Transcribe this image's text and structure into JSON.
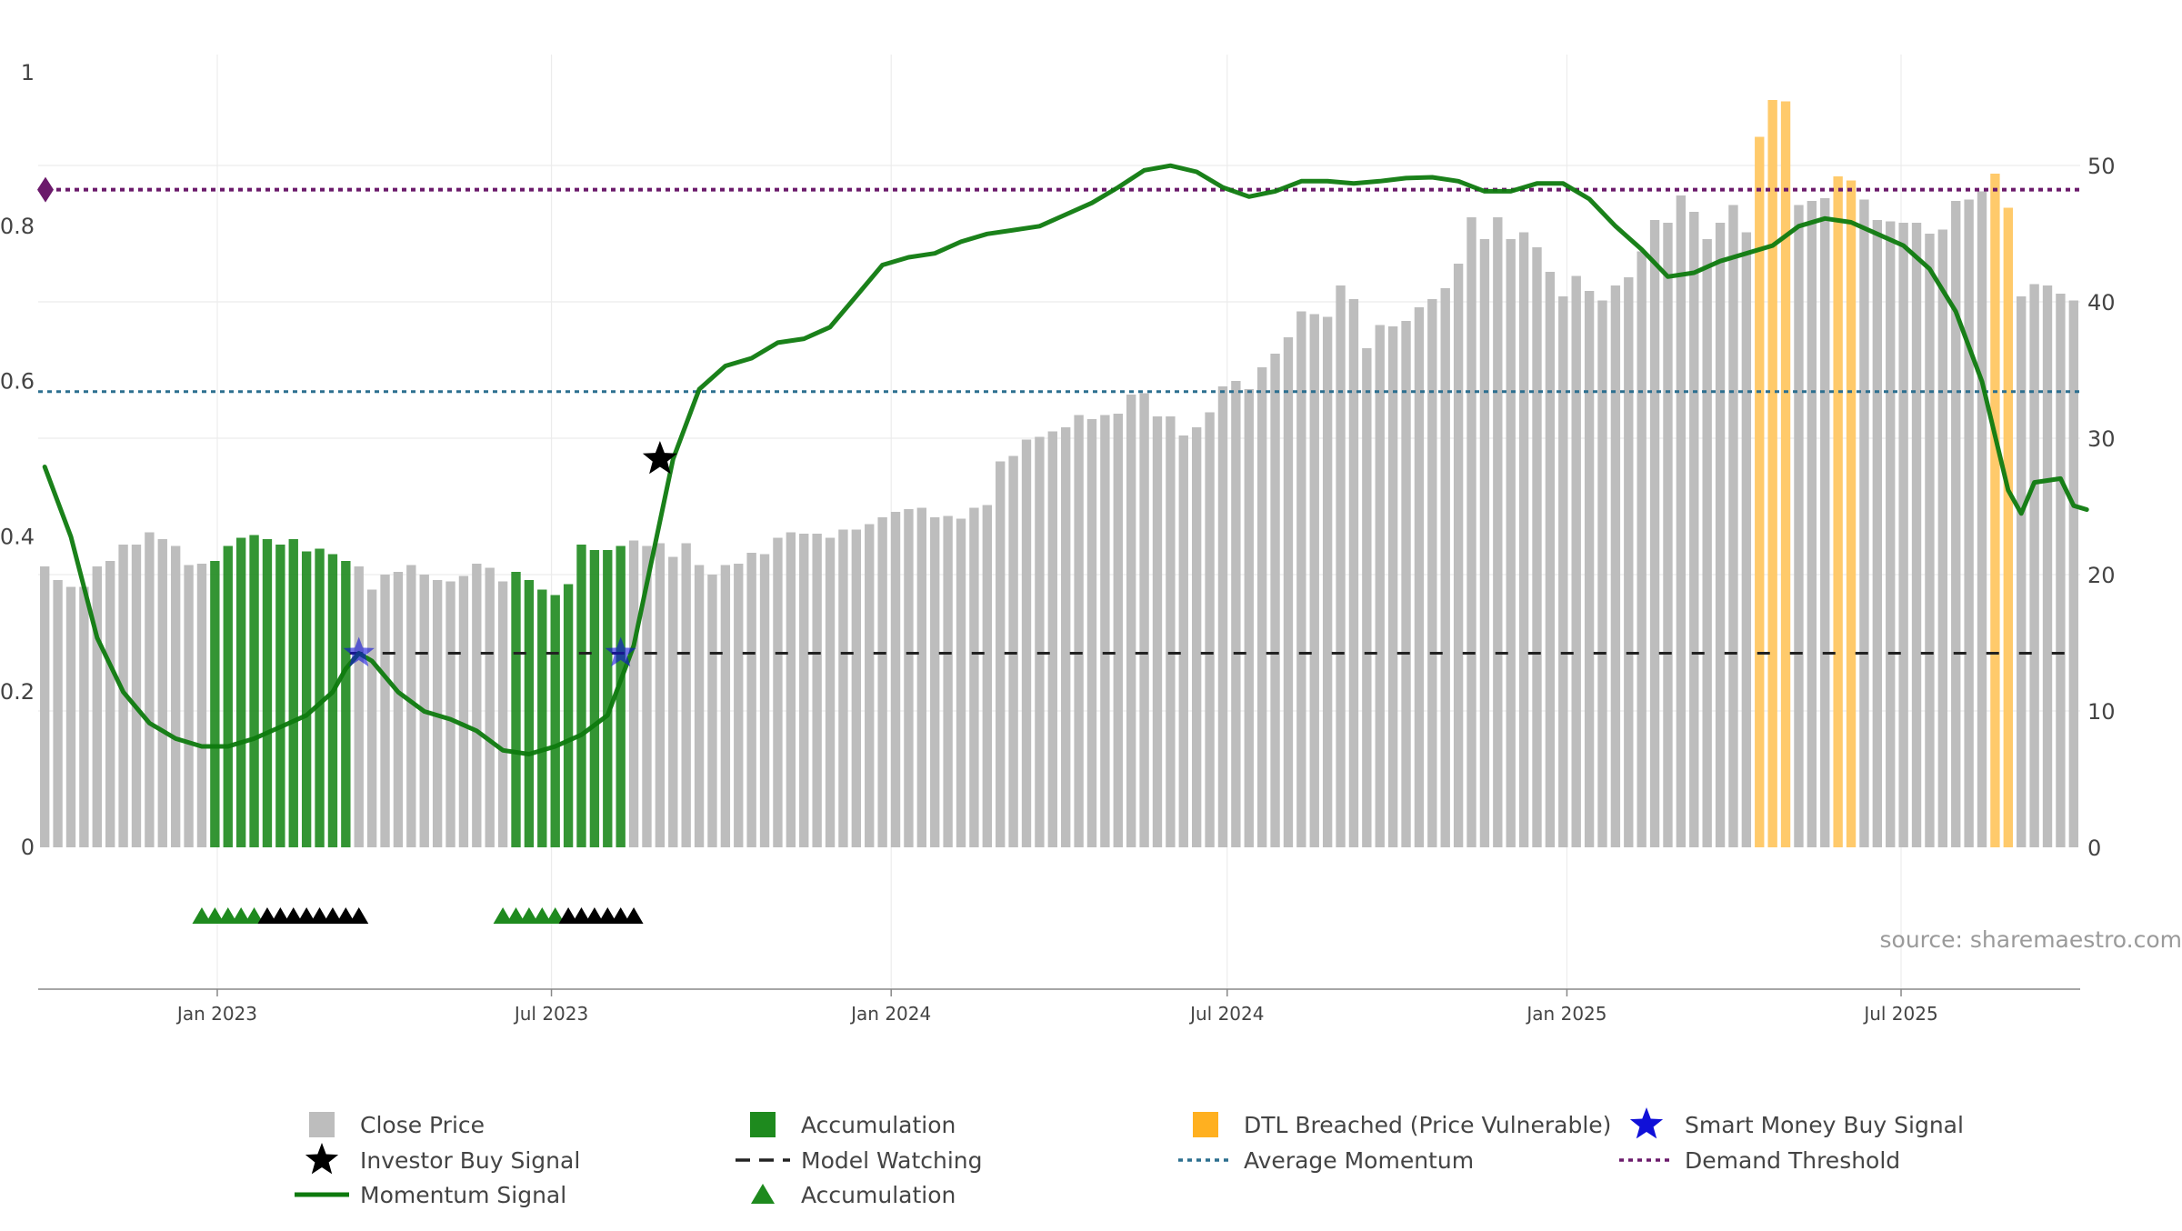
{
  "chart_data": {
    "type": "bar",
    "source": "source: sharemaestro.com",
    "start_date": "2022-09-26",
    "end_date": "2025-10-06",
    "left_axis": {
      "ylim": [
        0,
        1
      ],
      "ticks": [
        0,
        0.2,
        0.4,
        0.6,
        0.8
      ],
      "tick_labels": [
        "0",
        "0.2",
        "0.4",
        "0.6",
        "0.8"
      ],
      "top_label": "1"
    },
    "right_axis": {
      "ylim": [
        0,
        57
      ],
      "ticks": [
        0,
        10,
        20,
        30,
        40,
        50
      ],
      "tick_labels": [
        "0",
        "10",
        "20",
        "30",
        "40",
        "50"
      ]
    },
    "x_ticks": [
      {
        "date": "2023-01-01",
        "label": "Jan 2023"
      },
      {
        "date": "2023-07-01",
        "label": "Jul 2023"
      },
      {
        "date": "2024-01-01",
        "label": "Jan 2024"
      },
      {
        "date": "2024-07-01",
        "label": "Jul 2024"
      },
      {
        "date": "2025-01-01",
        "label": "Jan 2025"
      },
      {
        "date": "2025-07-01",
        "label": "Jul 2025"
      }
    ],
    "close_prices": [
      20.6,
      19.6,
      19.1,
      19.1,
      20.6,
      21.0,
      22.2,
      22.2,
      23.1,
      22.6,
      22.1,
      20.7,
      20.8,
      21.0,
      22.1,
      22.7,
      22.9,
      22.6,
      22.2,
      22.6,
      21.7,
      21.9,
      21.5,
      21.0,
      20.6,
      18.9,
      20.0,
      20.2,
      20.7,
      20.0,
      19.6,
      19.5,
      19.9,
      20.8,
      20.5,
      19.5,
      20.2,
      19.6,
      18.9,
      18.5,
      19.3,
      22.2,
      21.8,
      21.8,
      22.1,
      22.5,
      22.1,
      22.3,
      21.3,
      22.3,
      20.7,
      20.0,
      20.7,
      20.8,
      21.6,
      21.5,
      22.7,
      23.1,
      23.0,
      23.0,
      22.7,
      23.3,
      23.3,
      23.7,
      24.2,
      24.6,
      24.8,
      24.9,
      24.2,
      24.3,
      24.1,
      24.9,
      25.1,
      28.3,
      28.7,
      29.9,
      30.1,
      30.5,
      30.8,
      31.7,
      31.4,
      31.7,
      31.8,
      33.2,
      33.3,
      31.6,
      31.6,
      30.2,
      30.8,
      31.9,
      33.8,
      34.2,
      33.6,
      35.2,
      36.2,
      37.4,
      39.3,
      39.1,
      38.9,
      41.2,
      40.2,
      36.6,
      38.3,
      38.2,
      38.6,
      39.6,
      40.2,
      41.0,
      42.8,
      46.2,
      44.6,
      46.2,
      44.6,
      45.1,
      44.0,
      42.2,
      40.4,
      41.9,
      40.8,
      40.1,
      41.2,
      41.8,
      43.7,
      46.0,
      45.8,
      47.8,
      46.6,
      44.6,
      45.8,
      47.1,
      45.1,
      52.1,
      54.8,
      54.7,
      47.1,
      47.4,
      47.6,
      49.2,
      48.9,
      47.5,
      46.0,
      45.9,
      45.8,
      45.8,
      45.0,
      45.3,
      47.4,
      47.5,
      48.1,
      49.4,
      46.9,
      40.4,
      41.3,
      41.2,
      40.6,
      40.1
    ],
    "bar_colors": {
      "close": "#bdbdbd",
      "accumulation": "#1e8a1e",
      "dtl": "#ffca6b"
    },
    "accumulation_bar_ranges": [
      [
        13,
        23
      ],
      [
        36,
        44
      ]
    ],
    "dtl_bar_ranges": [
      [
        131,
        133
      ],
      [
        137,
        138
      ],
      [
        149,
        150
      ]
    ],
    "momentum_signal": {
      "color": "#0e7a0e",
      "values": [
        [
          0,
          0.49
        ],
        [
          2,
          0.4
        ],
        [
          4,
          0.27
        ],
        [
          6,
          0.2
        ],
        [
          8,
          0.16
        ],
        [
          10,
          0.14
        ],
        [
          12,
          0.13
        ],
        [
          14,
          0.13
        ],
        [
          16,
          0.14
        ],
        [
          18,
          0.155
        ],
        [
          20,
          0.17
        ],
        [
          22,
          0.2
        ],
        [
          23,
          0.23
        ],
        [
          24,
          0.25
        ],
        [
          25,
          0.24
        ],
        [
          27,
          0.2
        ],
        [
          29,
          0.175
        ],
        [
          31,
          0.165
        ],
        [
          33,
          0.15
        ],
        [
          35,
          0.125
        ],
        [
          37,
          0.12
        ],
        [
          39,
          0.13
        ],
        [
          41,
          0.145
        ],
        [
          43,
          0.17
        ],
        [
          45,
          0.26
        ],
        [
          47,
          0.42
        ],
        [
          48,
          0.5
        ],
        [
          50,
          0.59
        ],
        [
          52,
          0.62
        ],
        [
          54,
          0.63
        ],
        [
          56,
          0.65
        ],
        [
          58,
          0.655
        ],
        [
          60,
          0.67
        ],
        [
          62,
          0.71
        ],
        [
          64,
          0.75
        ],
        [
          66,
          0.76
        ],
        [
          68,
          0.765
        ],
        [
          70,
          0.78
        ],
        [
          72,
          0.79
        ],
        [
          74,
          0.795
        ],
        [
          76,
          0.8
        ],
        [
          78,
          0.815
        ],
        [
          80,
          0.83
        ],
        [
          82,
          0.85
        ],
        [
          84,
          0.872
        ],
        [
          86,
          0.878
        ],
        [
          88,
          0.87
        ],
        [
          90,
          0.85
        ],
        [
          92,
          0.838
        ],
        [
          94,
          0.845
        ],
        [
          96,
          0.858
        ],
        [
          98,
          0.858
        ],
        [
          100,
          0.855
        ],
        [
          102,
          0.858
        ],
        [
          104,
          0.862
        ],
        [
          106,
          0.863
        ],
        [
          108,
          0.858
        ],
        [
          110,
          0.845
        ],
        [
          112,
          0.845
        ],
        [
          114,
          0.855
        ],
        [
          116,
          0.855
        ],
        [
          118,
          0.835
        ],
        [
          120,
          0.8
        ],
        [
          122,
          0.77
        ],
        [
          124,
          0.735
        ],
        [
          126,
          0.74
        ],
        [
          128,
          0.755
        ],
        [
          130,
          0.765
        ],
        [
          132,
          0.775
        ],
        [
          134,
          0.8
        ],
        [
          136,
          0.81
        ],
        [
          138,
          0.805
        ],
        [
          140,
          0.79
        ],
        [
          142,
          0.775
        ],
        [
          144,
          0.745
        ],
        [
          146,
          0.69
        ],
        [
          148,
          0.6
        ],
        [
          150,
          0.46
        ],
        [
          151,
          0.43
        ],
        [
          152,
          0.47
        ],
        [
          154,
          0.475
        ],
        [
          155,
          0.44
        ],
        [
          156,
          0.435
        ]
      ]
    },
    "average_momentum": {
      "value": 0.587,
      "color": "#2c6f8f"
    },
    "demand_threshold": {
      "value": 0.847,
      "color": "#6b1a6b"
    },
    "model_watching": {
      "value": 0.25,
      "color": "#222222"
    },
    "investor_buy_signals": [
      [
        47,
        0.5
      ]
    ],
    "smart_money_buy_signals": [
      [
        24,
        0.25
      ],
      [
        44,
        0.25
      ]
    ],
    "accumulation_markers": [
      {
        "from": 12,
        "to": 24,
        "green_to": 16
      },
      {
        "from": 35,
        "to": 45,
        "green_to": 39
      }
    ],
    "legend": [
      {
        "label": "Close Price",
        "swatch": "square",
        "color": "#bdbdbd"
      },
      {
        "label": "Accumulation",
        "swatch": "square",
        "color": "#1e8a1e"
      },
      {
        "label": "DTL Breached (Price Vulnerable)",
        "swatch": "square",
        "color": "#ffb020"
      },
      {
        "label": "Smart Money Buy Signal",
        "swatch": "star",
        "color": "#1010d8"
      },
      {
        "label": "Investor Buy Signal",
        "swatch": "star",
        "color": "#000000"
      },
      {
        "label": "Model Watching",
        "swatch": "dash",
        "color": "#222222"
      },
      {
        "label": "Average Momentum",
        "swatch": "dot",
        "color": "#2c6f8f"
      },
      {
        "label": "Demand Threshold",
        "swatch": "dot",
        "color": "#6b1a6b"
      },
      {
        "label": "Momentum Signal",
        "swatch": "line",
        "color": "#0e7a0e"
      },
      {
        "label": "Accumulation",
        "swatch": "triangle",
        "color": "#1e8a1e"
      }
    ]
  }
}
